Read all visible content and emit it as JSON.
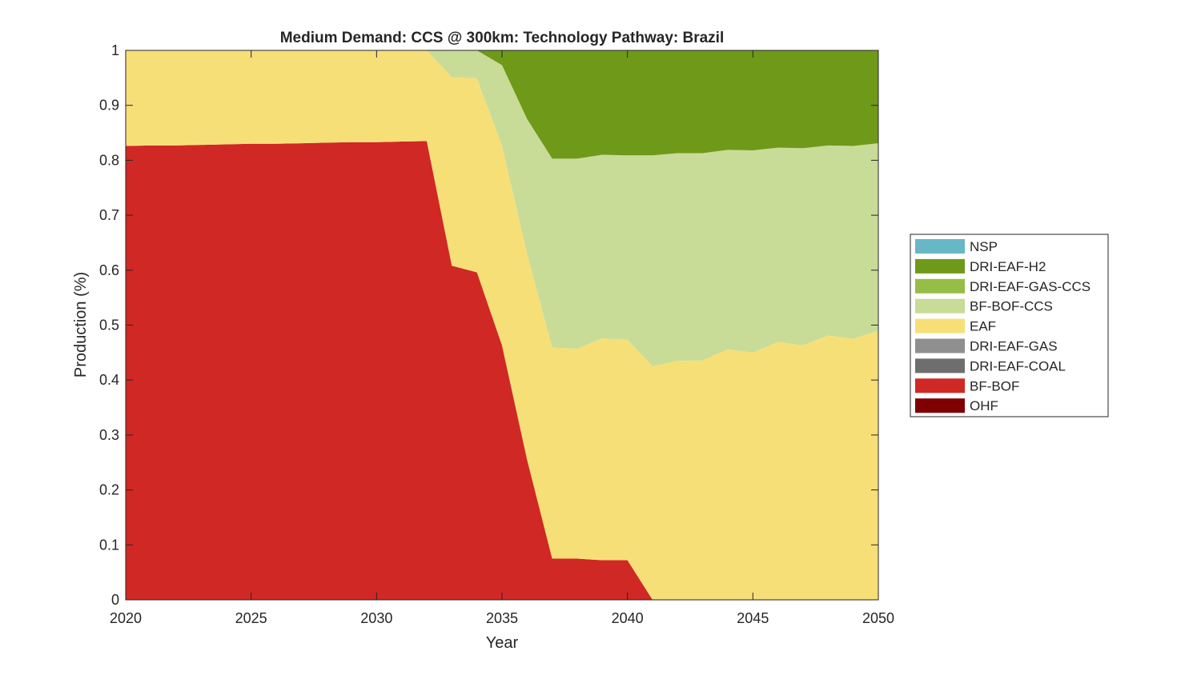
{
  "chart_data": {
    "type": "area",
    "stacked": true,
    "title": "Medium Demand: CCS @ 300km: Technology Pathway: Brazil",
    "xlabel": "Year",
    "ylabel": "Production (%)",
    "xlim": [
      2020,
      2050
    ],
    "ylim": [
      0,
      1
    ],
    "xticks": [
      2020,
      2025,
      2030,
      2035,
      2040,
      2045,
      2050
    ],
    "yticks": [
      0,
      0.1,
      0.2,
      0.3,
      0.4,
      0.5,
      0.6,
      0.7,
      0.8,
      0.9,
      1
    ],
    "ytick_labels": [
      "0",
      "0.1",
      "0.2",
      "0.3",
      "0.4",
      "0.5",
      "0.6",
      "0.7",
      "0.8",
      "0.9",
      "1"
    ],
    "grid": false,
    "legend_position": "right-outside",
    "x": [
      2020,
      2021,
      2022,
      2023,
      2024,
      2025,
      2026,
      2027,
      2028,
      2029,
      2030,
      2031,
      2032,
      2033,
      2034,
      2035,
      2036,
      2037,
      2038,
      2039,
      2040,
      2041,
      2042,
      2043,
      2044,
      2045,
      2046,
      2047,
      2048,
      2049,
      2050
    ],
    "series": [
      {
        "name": "OHF",
        "color": "#7f0000",
        "values": [
          0,
          0,
          0,
          0,
          0,
          0,
          0,
          0,
          0,
          0,
          0,
          0,
          0,
          0,
          0,
          0,
          0,
          0,
          0,
          0,
          0,
          0,
          0,
          0,
          0,
          0,
          0,
          0,
          0,
          0,
          0
        ]
      },
      {
        "name": "BF-BOF",
        "color": "#d02824",
        "values": [
          0.826,
          0.827,
          0.827,
          0.828,
          0.829,
          0.83,
          0.83,
          0.831,
          0.832,
          0.833,
          0.833,
          0.834,
          0.835,
          0.608,
          0.596,
          0.463,
          0.255,
          0.075,
          0.075,
          0.072,
          0.072,
          0,
          0,
          0,
          0,
          0,
          0,
          0,
          0,
          0,
          0
        ]
      },
      {
        "name": "DRI-EAF-COAL",
        "color": "#6e6e6e",
        "values": [
          0,
          0,
          0,
          0,
          0,
          0,
          0,
          0,
          0,
          0,
          0,
          0,
          0,
          0,
          0,
          0,
          0,
          0,
          0,
          0,
          0,
          0,
          0,
          0,
          0,
          0,
          0,
          0,
          0,
          0,
          0
        ]
      },
      {
        "name": "DRI-EAF-GAS",
        "color": "#8f8f8f",
        "values": [
          0,
          0,
          0,
          0,
          0,
          0,
          0,
          0,
          0,
          0,
          0,
          0,
          0,
          0,
          0,
          0,
          0,
          0,
          0,
          0,
          0,
          0,
          0,
          0,
          0,
          0,
          0,
          0,
          0,
          0,
          0
        ]
      },
      {
        "name": "EAF",
        "color": "#f7df77",
        "values": [
          0.174,
          0.173,
          0.173,
          0.172,
          0.171,
          0.17,
          0.17,
          0.169,
          0.168,
          0.167,
          0.167,
          0.166,
          0.165,
          0.343,
          0.353,
          0.363,
          0.375,
          0.384,
          0.382,
          0.404,
          0.401,
          0.425,
          0.435,
          0.436,
          0.456,
          0.45,
          0.469,
          0.463,
          0.481,
          0.475,
          0.49
        ]
      },
      {
        "name": "BF-BOF-CCS",
        "color": "#c8dc98",
        "values": [
          0,
          0,
          0,
          0,
          0,
          0,
          0,
          0,
          0,
          0,
          0,
          0,
          0,
          0.049,
          0.051,
          0.147,
          0.245,
          0.344,
          0.346,
          0.334,
          0.336,
          0.384,
          0.378,
          0.377,
          0.363,
          0.368,
          0.354,
          0.359,
          0.346,
          0.351,
          0.341
        ]
      },
      {
        "name": "DRI-EAF-GAS-CCS",
        "color": "#96bd46",
        "values": [
          0,
          0,
          0,
          0,
          0,
          0,
          0,
          0,
          0,
          0,
          0,
          0,
          0,
          0,
          0,
          0,
          0,
          0,
          0,
          0,
          0,
          0,
          0,
          0,
          0,
          0,
          0,
          0,
          0,
          0,
          0
        ]
      },
      {
        "name": "DRI-EAF-H2",
        "color": "#6f9a19",
        "values": [
          0,
          0,
          0,
          0,
          0,
          0,
          0,
          0,
          0,
          0,
          0,
          0,
          0,
          0,
          0,
          0.027,
          0.125,
          0.197,
          0.197,
          0.19,
          0.191,
          0.191,
          0.187,
          0.187,
          0.181,
          0.182,
          0.177,
          0.178,
          0.173,
          0.174,
          0.169
        ]
      },
      {
        "name": "NSP",
        "color": "#67b7c7",
        "values": [
          0,
          0,
          0,
          0,
          0,
          0,
          0,
          0,
          0,
          0,
          0,
          0,
          0,
          0,
          0,
          0,
          0,
          0,
          0,
          0,
          0,
          0,
          0,
          0,
          0,
          0,
          0,
          0,
          0,
          0,
          0
        ]
      }
    ],
    "legend_order": [
      "NSP",
      "DRI-EAF-H2",
      "DRI-EAF-GAS-CCS",
      "BF-BOF-CCS",
      "EAF",
      "DRI-EAF-GAS",
      "DRI-EAF-COAL",
      "BF-BOF",
      "OHF"
    ]
  }
}
